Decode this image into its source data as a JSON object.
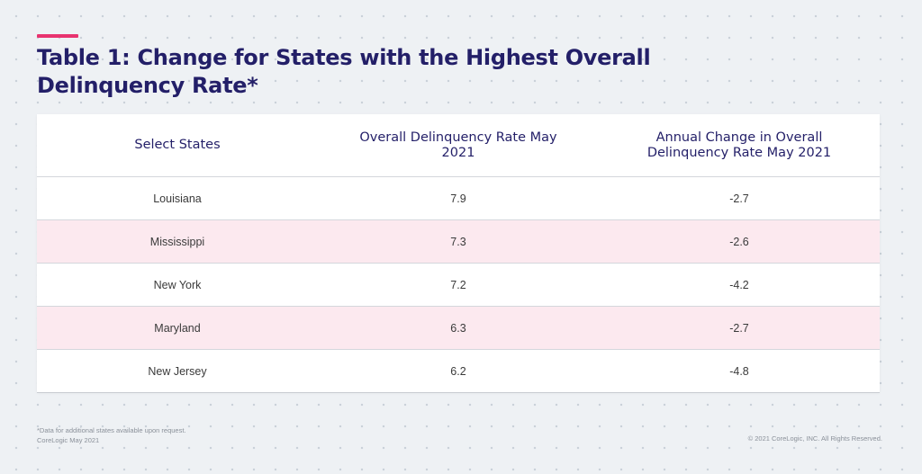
{
  "header": {
    "title": "Table 1: Change for States with the Highest Overall Delinquency Rate*",
    "accent_color": "#e8336f",
    "title_color": "#231f68"
  },
  "table": {
    "columns": [
      "Select States",
      "Overall Delinquency Rate May 2021",
      "Annual Change in Overall Delinquency Rate May 2021"
    ],
    "rows": [
      {
        "state": "Louisiana",
        "rate": "7.9",
        "change": "-2.7"
      },
      {
        "state": "Mississippi",
        "rate": "7.3",
        "change": "-2.6"
      },
      {
        "state": "New York",
        "rate": "7.2",
        "change": "-4.2"
      },
      {
        "state": "Maryland",
        "rate": "6.3",
        "change": "-2.7"
      },
      {
        "state": "New Jersey",
        "rate": "6.2",
        "change": "-4.8"
      }
    ],
    "shaded_row_color": "#fce9ef"
  },
  "footer": {
    "note_line1": "*Data for additional states available upon request.",
    "note_line2": "CoreLogic May 2021",
    "copyright": "© 2021 CoreLogic, INC. All Rights Reserved."
  }
}
